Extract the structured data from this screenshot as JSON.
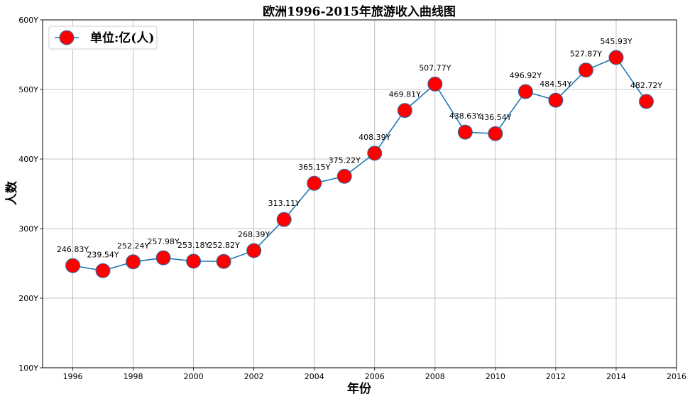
{
  "chart_data": {
    "type": "line",
    "title": "欧洲1996-2015年旅游收入曲线图",
    "xlabel": "年份",
    "ylabel": "人数",
    "x": [
      1996,
      1997,
      1998,
      1999,
      2000,
      2001,
      2002,
      2003,
      2004,
      2005,
      2006,
      2007,
      2008,
      2009,
      2010,
      2011,
      2012,
      2013,
      2014,
      2015
    ],
    "series": [
      {
        "name": "单位:亿(人)",
        "values": [
          246.83,
          239.54,
          252.24,
          257.98,
          253.18,
          252.82,
          268.39,
          313.11,
          365.15,
          375.22,
          408.39,
          469.81,
          507.77,
          438.63,
          436.54,
          496.92,
          484.54,
          527.87,
          545.93,
          482.72
        ],
        "labels": [
          "246.83Y",
          "239.54Y",
          "252.24Y",
          "257.98Y",
          "253.18Y",
          "252.82Y",
          "268.39Y",
          "313.11Y",
          "365.15Y",
          "375.22Y",
          "408.39Y",
          "469.81Y",
          "507.77Y",
          "438.63Y",
          "436.54Y",
          "496.92Y",
          "484.54Y",
          "527.87Y",
          "545.93Y",
          "482.72Y"
        ],
        "line_color": "#1f77b4",
        "marker_color": "#ff0000",
        "marker_edge_color": "#1f77b4"
      }
    ],
    "xlim": [
      1995,
      2016
    ],
    "ylim": [
      100,
      600
    ],
    "xticks": [
      1996,
      1998,
      2000,
      2002,
      2004,
      2006,
      2008,
      2010,
      2012,
      2014,
      2016
    ],
    "xtick_labels": [
      "1996",
      "1998",
      "2000",
      "2002",
      "2004",
      "2006",
      "2008",
      "2010",
      "2012",
      "2014",
      "2016"
    ],
    "yticks": [
      100,
      200,
      300,
      400,
      500,
      600
    ],
    "ytick_labels": [
      "100Y",
      "200Y",
      "300Y",
      "400Y",
      "500Y",
      "600Y"
    ],
    "grid": true,
    "legend": "upper-left"
  }
}
